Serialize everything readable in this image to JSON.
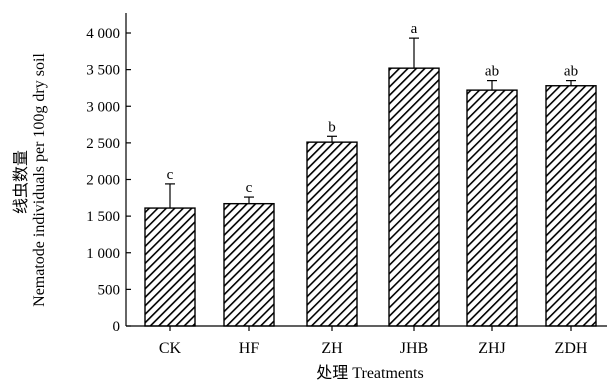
{
  "chart_data": {
    "type": "bar",
    "categories": [
      "CK",
      "HF",
      "ZH",
      "JHB",
      "ZHJ",
      "ZDH"
    ],
    "values": [
      1610,
      1670,
      2510,
      3520,
      3220,
      3280
    ],
    "errors": [
      330,
      90,
      80,
      410,
      130,
      70
    ],
    "significance": [
      "c",
      "c",
      "b",
      "a",
      "ab",
      "ab"
    ],
    "title": "",
    "xlabel": "处理 Treatments",
    "ylabel": "Nematode individuals per 100g dry soil",
    "ylabel_cn": "线虫数量",
    "ylim": [
      0,
      4000
    ],
    "yticks": [
      0,
      500,
      1000,
      1500,
      2000,
      2500,
      3000,
      3500,
      4000
    ],
    "ytick_labels": [
      "0",
      "500",
      "1 000",
      "1 500",
      "2 000",
      "2 500",
      "3 000",
      "3 500",
      "4 000"
    ],
    "bar_fill": "hatched",
    "grid": false,
    "legend": "none"
  }
}
